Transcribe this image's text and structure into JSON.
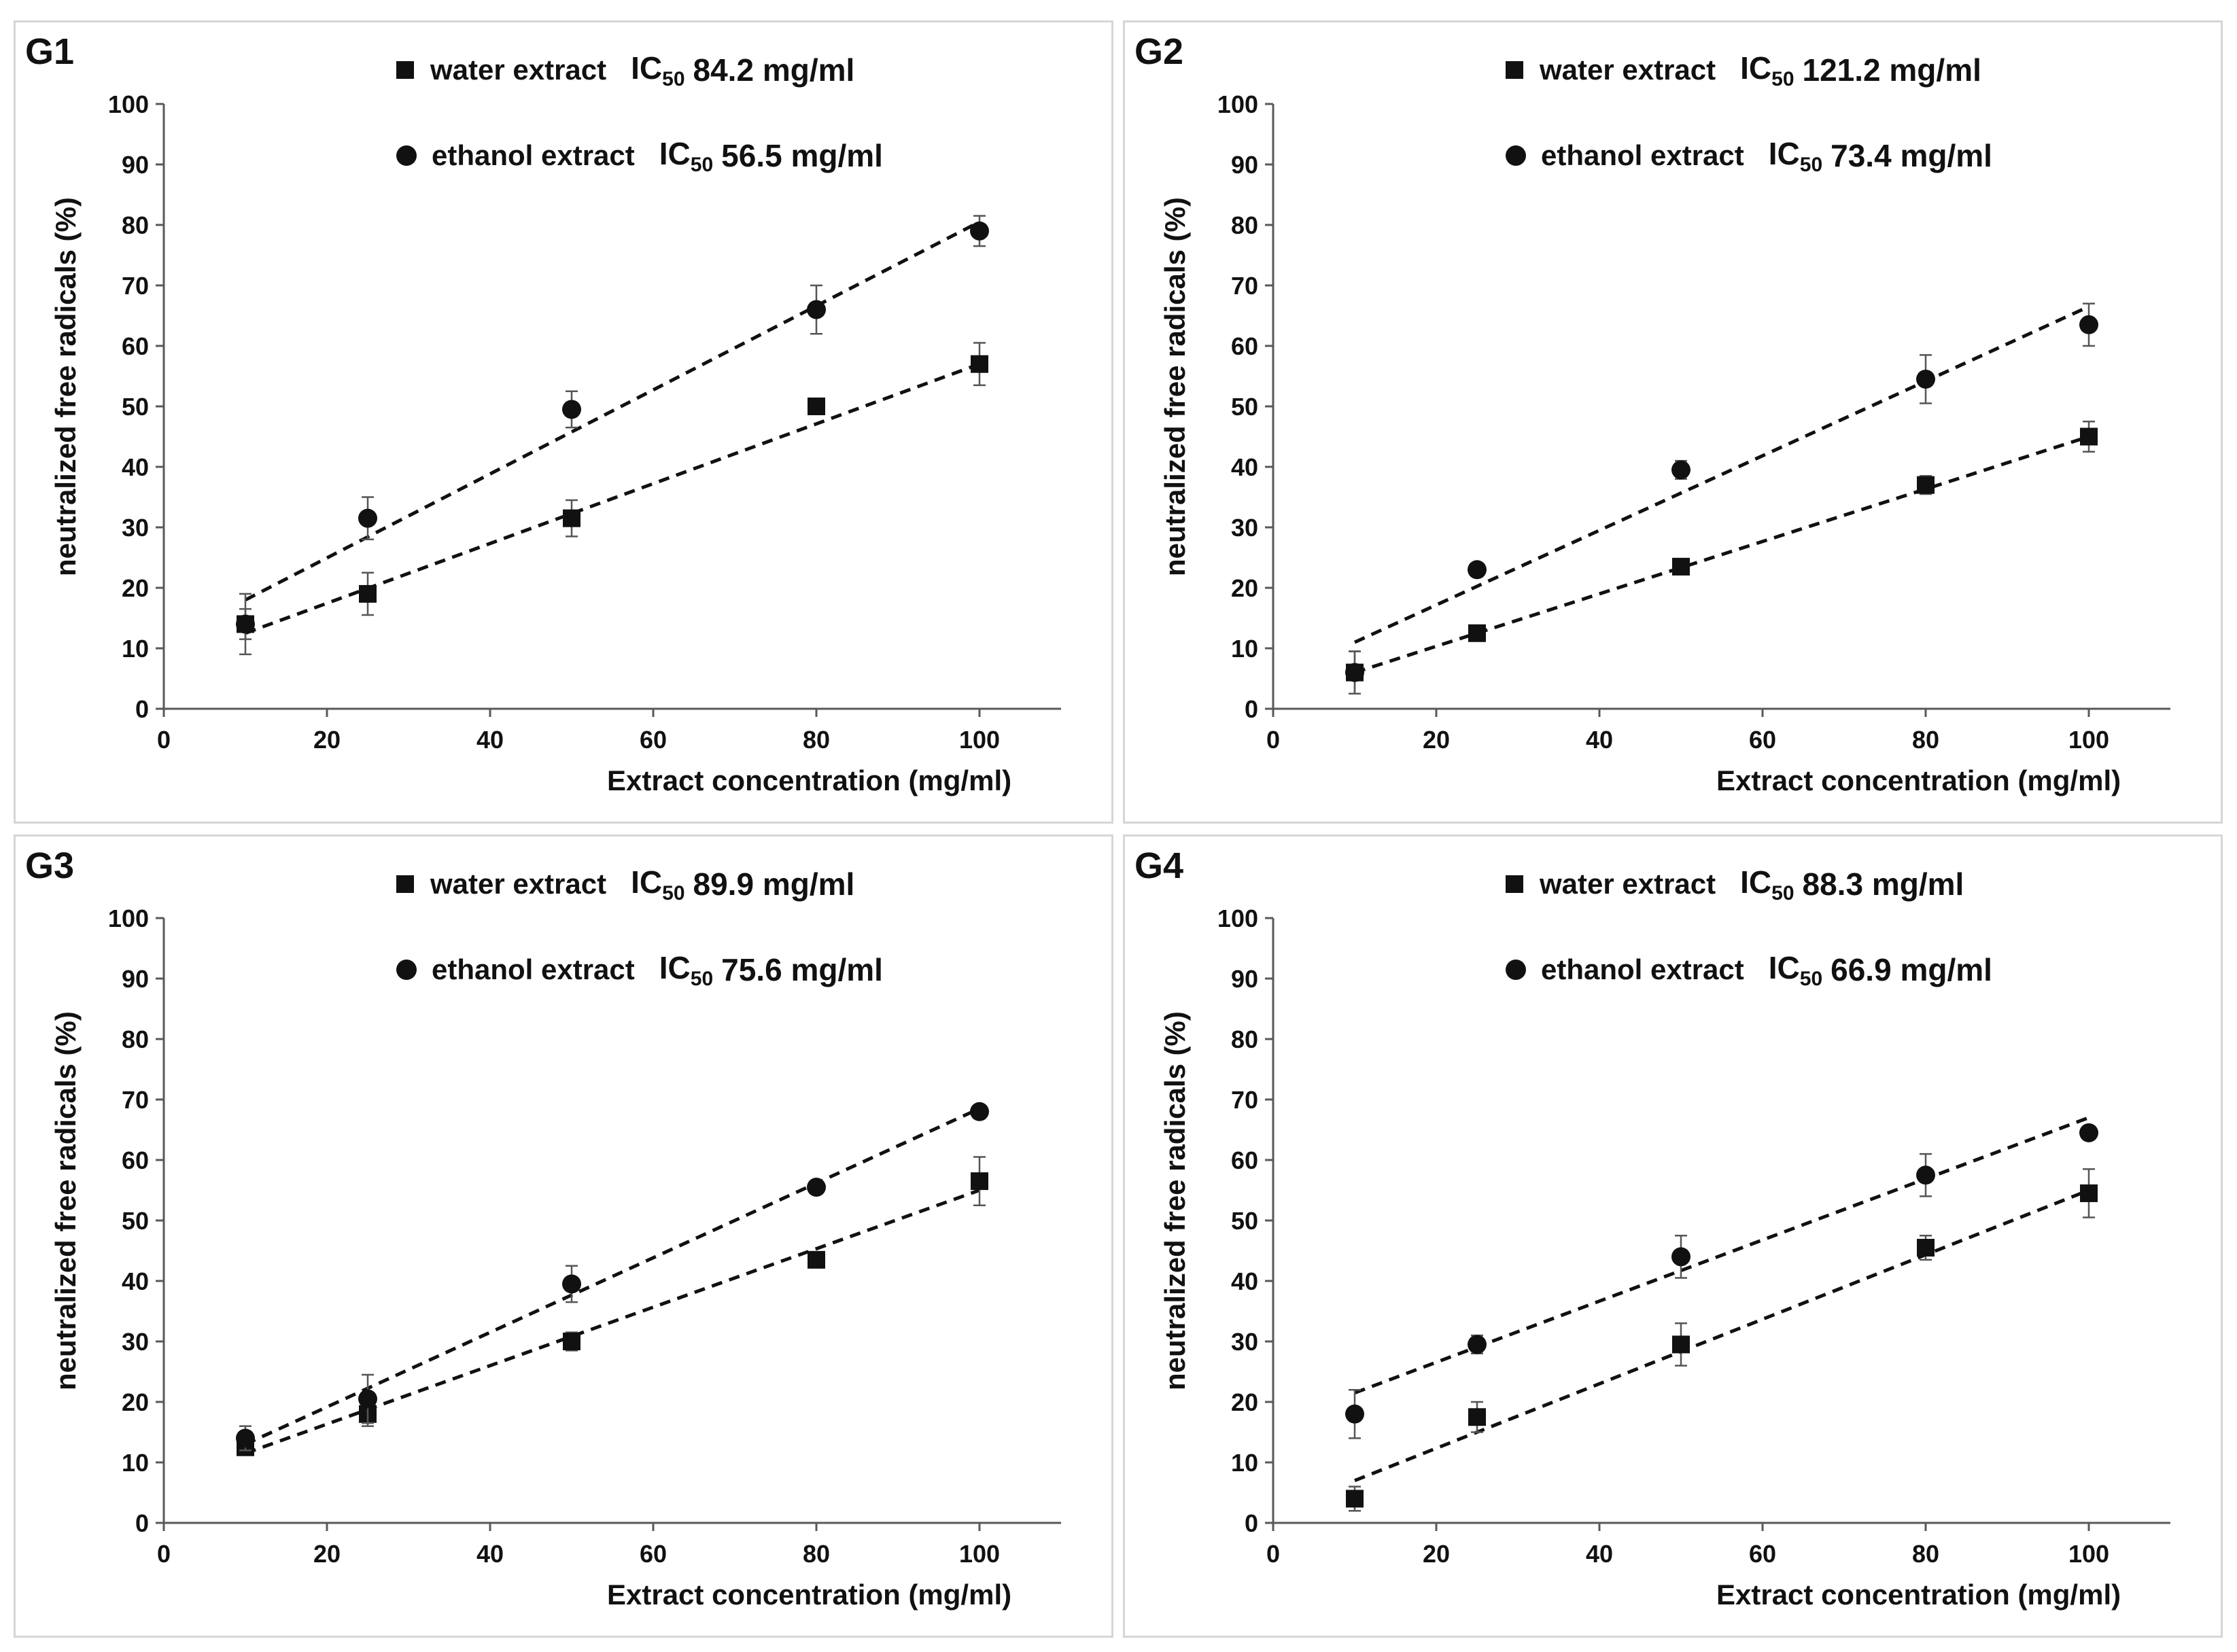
{
  "chart_data": [
    {
      "type": "scatter",
      "title": "G1",
      "xlabel": "Extract concentration (mg/ml)",
      "ylabel": "neutralized free radicals (%)",
      "xlim": [
        0,
        110
      ],
      "ylim": [
        0,
        100
      ],
      "xticks": [
        "0",
        "20",
        "40",
        "60",
        "80",
        "100"
      ],
      "yticks": [
        "0",
        "10",
        "20",
        "30",
        "40",
        "50",
        "60",
        "70",
        "80",
        "90",
        "100"
      ],
      "x": [
        10,
        25,
        50,
        80,
        100
      ],
      "series": [
        {
          "name": "water extract",
          "marker": "square",
          "ic_prefix": "IC",
          "ic_sub": "50",
          "ic_value": "84.2 mg/ml",
          "values": [
            14,
            19,
            31.5,
            50,
            57
          ],
          "errors": [
            2.5,
            3.5,
            3,
            1,
            3.5
          ],
          "trend": [
            12.5,
            57
          ]
        },
        {
          "name": "ethanol extract",
          "marker": "circle",
          "ic_prefix": "IC",
          "ic_sub": "50",
          "ic_value": "56.5 mg/ml",
          "values": [
            14,
            31.5,
            49.5,
            66,
            79
          ],
          "errors": [
            5,
            3.5,
            3,
            4,
            2.5
          ],
          "trend": [
            18,
            80.5
          ]
        }
      ]
    },
    {
      "type": "scatter",
      "title": "G2",
      "xlabel": "Extract concentration (mg/ml)",
      "ylabel": "neutralized free radicals (%)",
      "xlim": [
        0,
        110
      ],
      "ylim": [
        0,
        100
      ],
      "xticks": [
        "0",
        "20",
        "40",
        "60",
        "80",
        "100"
      ],
      "yticks": [
        "0",
        "10",
        "20",
        "30",
        "40",
        "50",
        "60",
        "70",
        "80",
        "90",
        "100"
      ],
      "x": [
        10,
        25,
        50,
        80,
        100
      ],
      "series": [
        {
          "name": "water extract",
          "marker": "square",
          "ic_prefix": "IC",
          "ic_sub": "50",
          "ic_value": "121.2 mg/ml",
          "values": [
            6,
            12.5,
            23.5,
            37,
            45
          ],
          "errors": [
            3.5,
            1,
            1,
            1.5,
            2.5
          ],
          "trend": [
            6,
            45
          ]
        },
        {
          "name": "ethanol extract",
          "marker": "circle",
          "ic_prefix": "IC",
          "ic_sub": "50",
          "ic_value": "73.4 mg/ml",
          "values": [
            6,
            23,
            39.5,
            54.5,
            63.5
          ],
          "errors": [
            3.5,
            0.5,
            1.5,
            4,
            3.5
          ],
          "trend": [
            11,
            66.5
          ]
        }
      ]
    },
    {
      "type": "scatter",
      "title": "G3",
      "xlabel": "Extract concentration (mg/ml)",
      "ylabel": "neutralized free radicals (%)",
      "xlim": [
        0,
        110
      ],
      "ylim": [
        0,
        100
      ],
      "xticks": [
        "0",
        "20",
        "40",
        "60",
        "80",
        "100"
      ],
      "yticks": [
        "0",
        "10",
        "20",
        "30",
        "40",
        "50",
        "60",
        "70",
        "80",
        "90",
        "100"
      ],
      "x": [
        10,
        25,
        50,
        80,
        100
      ],
      "series": [
        {
          "name": "water extract",
          "marker": "square",
          "ic_prefix": "IC",
          "ic_sub": "50",
          "ic_value": "89.9 mg/ml",
          "values": [
            12.5,
            18,
            30,
            43.5,
            56.5
          ],
          "errors": [
            1,
            2,
            1.5,
            1,
            4
          ],
          "trend": [
            11.5,
            55
          ]
        },
        {
          "name": "ethanol extract",
          "marker": "circle",
          "ic_prefix": "IC",
          "ic_sub": "50",
          "ic_value": "75.6 mg/ml",
          "values": [
            14,
            20.5,
            39.5,
            55.5,
            68
          ],
          "errors": [
            2,
            4,
            3,
            0.5,
            0.5
          ],
          "trend": [
            13,
            68.5
          ]
        }
      ]
    },
    {
      "type": "scatter",
      "title": "G4",
      "xlabel": "Extract concentration (mg/ml)",
      "ylabel": "neutralized free radicals (%)",
      "xlim": [
        0,
        110
      ],
      "ylim": [
        0,
        100
      ],
      "xticks": [
        "0",
        "20",
        "40",
        "60",
        "80",
        "100"
      ],
      "yticks": [
        "0",
        "10",
        "20",
        "30",
        "40",
        "50",
        "60",
        "70",
        "80",
        "90",
        "100"
      ],
      "x": [
        10,
        25,
        50,
        80,
        100
      ],
      "series": [
        {
          "name": "water extract",
          "marker": "square",
          "ic_prefix": "IC",
          "ic_sub": "50",
          "ic_value": "88.3 mg/ml",
          "values": [
            4,
            17.5,
            29.5,
            45.5,
            54.5
          ],
          "errors": [
            2,
            2.5,
            3.5,
            2,
            4
          ],
          "trend": [
            7,
            55
          ]
        },
        {
          "name": "ethanol extract",
          "marker": "circle",
          "ic_prefix": "IC",
          "ic_sub": "50",
          "ic_value": "66.9 mg/ml",
          "values": [
            18,
            29.5,
            44,
            57.5,
            64.5
          ],
          "errors": [
            4,
            1.5,
            3.5,
            3.5,
            0.5
          ],
          "trend": [
            21.5,
            67
          ]
        }
      ]
    }
  ]
}
